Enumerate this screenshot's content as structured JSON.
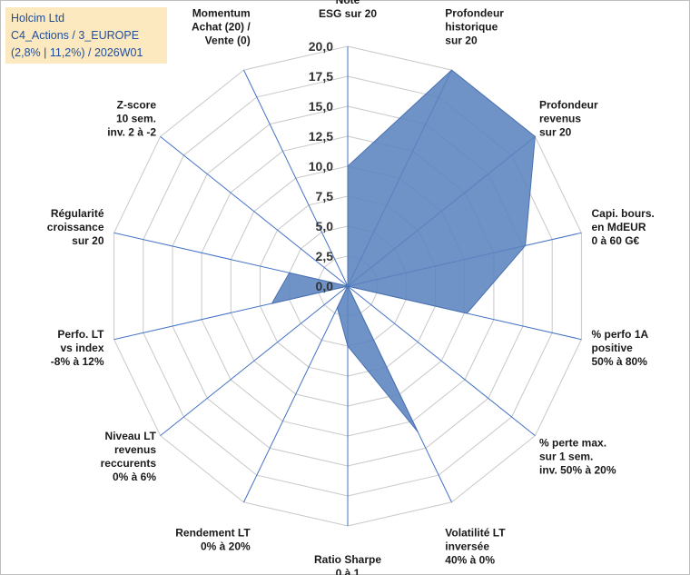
{
  "title_box": {
    "line1": "Holcim Ltd",
    "line2": "C4_Actions / 3_EUROPE",
    "line3": "(2,8% | 11,2%) / 2026W01"
  },
  "chart_data": {
    "type": "radar",
    "rmax": 20,
    "ticks": [
      "0,0",
      "2,5",
      "5,0",
      "7,5",
      "10,0",
      "12,5",
      "15,0",
      "17,5",
      "20,0"
    ],
    "grid": true,
    "colors": {
      "fill": "#5b83bf",
      "stroke": "#4a72b0",
      "grid": "#c8c8c8",
      "spoke": "#4472c4"
    },
    "axes": [
      {
        "label": [
          "Note",
          "ESG sur 20"
        ],
        "value": 10.0
      },
      {
        "label": [
          "Profondeur",
          "historique",
          "sur 20"
        ],
        "value": 20.0
      },
      {
        "label": [
          "Profondeur",
          "revenus",
          "sur 20"
        ],
        "value": 20.0
      },
      {
        "label": [
          "Capi. bours.",
          "en MdEUR",
          "0 à 60 G€"
        ],
        "value": 15.2
      },
      {
        "label": [
          "% perfo 1A",
          "positive",
          "50% à 80%"
        ],
        "value": 10.2
      },
      {
        "label": [
          "% perte max.",
          "sur 1 sem.",
          "inv. 50% à 20%"
        ],
        "value": 0.0
      },
      {
        "label": [
          "Volatilité LT",
          "inversée",
          "40% à 0%"
        ],
        "value": 13.5
      },
      {
        "label": [
          "Ratio Sharpe",
          "0 à 1"
        ],
        "value": 5.0
      },
      {
        "label": [
          "Rendement LT",
          "0% à 20%"
        ],
        "value": 2.0
      },
      {
        "label": [
          "Niveau LT",
          "revenus",
          "reccurents",
          "0% à 6%"
        ],
        "value": 0.0
      },
      {
        "label": [
          "Perfo. LT",
          "vs index",
          "-8% à 12%"
        ],
        "value": 6.5
      },
      {
        "label": [
          "Régularité",
          "croissance",
          "sur 20"
        ],
        "value": 5.0
      },
      {
        "label": [
          "Z-score",
          "10 sem.",
          "inv. 2 à -2"
        ],
        "value": 0.0
      },
      {
        "label": [
          "Momentum",
          "Achat (20) /",
          "Vente (0)"
        ],
        "value": 0.0
      }
    ]
  }
}
